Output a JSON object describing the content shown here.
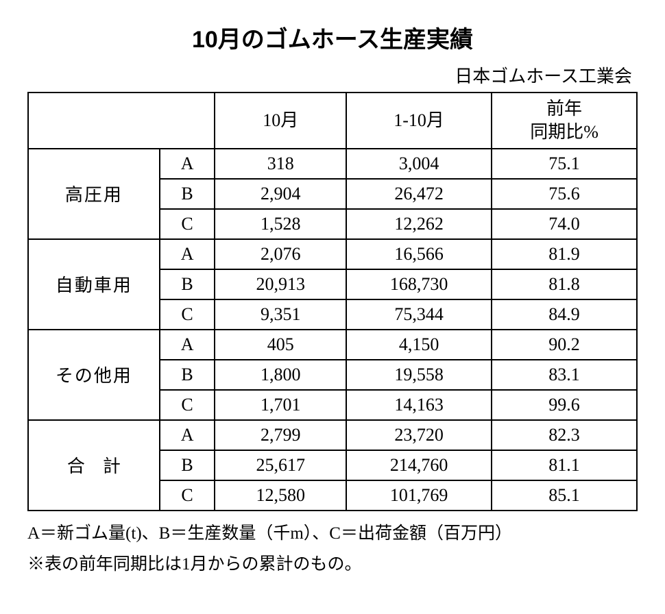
{
  "title": "10月のゴムホース生産実績",
  "source": "日本ゴムホース工業会",
  "headers": {
    "blank": "",
    "oct": "10月",
    "ytd": "1-10月",
    "ratio_line1": "前年",
    "ratio_line2": "同期比%"
  },
  "categories": [
    {
      "name": "高圧用",
      "rows": [
        {
          "sub": "A",
          "oct": "318",
          "ytd": "3,004",
          "ratio": "75.1"
        },
        {
          "sub": "B",
          "oct": "2,904",
          "ytd": "26,472",
          "ratio": "75.6"
        },
        {
          "sub": "C",
          "oct": "1,528",
          "ytd": "12,262",
          "ratio": "74.0"
        }
      ]
    },
    {
      "name": "自動車用",
      "rows": [
        {
          "sub": "A",
          "oct": "2,076",
          "ytd": "16,566",
          "ratio": "81.9"
        },
        {
          "sub": "B",
          "oct": "20,913",
          "ytd": "168,730",
          "ratio": "81.8"
        },
        {
          "sub": "C",
          "oct": "9,351",
          "ytd": "75,344",
          "ratio": "84.9"
        }
      ]
    },
    {
      "name": "その他用",
      "rows": [
        {
          "sub": "A",
          "oct": "405",
          "ytd": "4,150",
          "ratio": "90.2"
        },
        {
          "sub": "B",
          "oct": "1,800",
          "ytd": "19,558",
          "ratio": "83.1"
        },
        {
          "sub": "C",
          "oct": "1,701",
          "ytd": "14,163",
          "ratio": "99.6"
        }
      ]
    },
    {
      "name": "合　計",
      "rows": [
        {
          "sub": "A",
          "oct": "2,799",
          "ytd": "23,720",
          "ratio": "82.3"
        },
        {
          "sub": "B",
          "oct": "25,617",
          "ytd": "214,760",
          "ratio": "81.1"
        },
        {
          "sub": "C",
          "oct": "12,580",
          "ytd": "101,769",
          "ratio": "85.1"
        }
      ]
    }
  ],
  "footnotes": {
    "line1": "A＝新ゴム量(t)、B＝生産数量（千m）、C＝出荷金額（百万円）",
    "line2": "※表の前年同期比は1月からの累計のもの。"
  },
  "table_style": {
    "border_color": "#000000",
    "border_width": 2,
    "background_color": "#ffffff",
    "text_color": "#000000",
    "body_fontsize": 26,
    "title_fontsize": 34,
    "footnote_fontsize": 25,
    "column_widths": {
      "category": 190,
      "sub": 80,
      "oct": 190,
      "ytd": 210,
      "ratio": 210
    }
  }
}
